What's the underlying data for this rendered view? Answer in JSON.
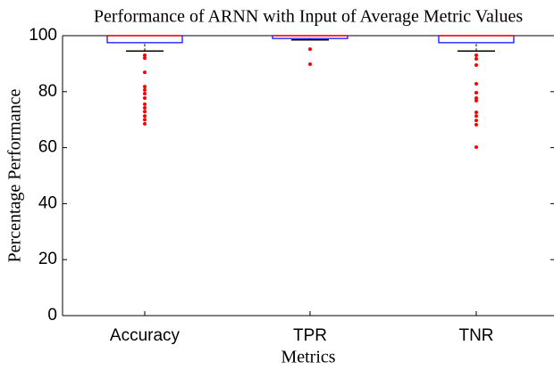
{
  "chart_data": {
    "type": "box",
    "title": "Performance of ARNN with Input of Average Metric Values",
    "xlabel": "Metrics",
    "ylabel": "Percentage Performance",
    "categories": [
      "Accuracy",
      "TPR",
      "TNR"
    ],
    "boxes": [
      {
        "min": 94.5,
        "q1": 97.5,
        "median": 100,
        "q3": 100,
        "max": 100,
        "outliers": [
          93,
          92,
          86.9,
          81.8,
          80.6,
          79.3,
          77.7,
          75.5,
          74.2,
          72.9,
          71.3,
          70,
          68.5
        ]
      },
      {
        "min": 98.5,
        "q1": 99,
        "median": 100,
        "q3": 100,
        "max": 100,
        "outliers": [
          95.2,
          89.8
        ]
      },
      {
        "min": 94.5,
        "q1": 97.5,
        "median": 100,
        "q3": 100,
        "max": 100,
        "outliers": [
          93,
          91.7,
          89.5,
          82.8,
          79.6,
          77.7,
          76.8,
          72.6,
          71.3,
          69.7,
          68.2,
          60.2
        ]
      }
    ],
    "box_color": "#0000ff",
    "median_color": "#ff0000",
    "whisker_color": "#000000",
    "outlier_color": "#ff0000",
    "ylim": [
      0,
      100
    ],
    "yticks": [
      0,
      20,
      40,
      60,
      80,
      100
    ]
  }
}
